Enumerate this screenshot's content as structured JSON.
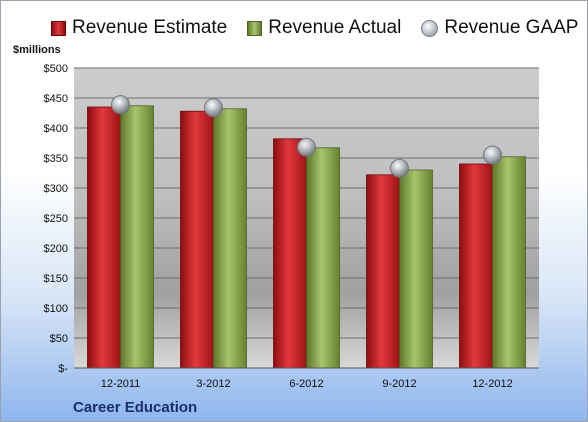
{
  "chart_data": {
    "type": "bar",
    "ylabel": "$millions",
    "company": "Career Education",
    "categories": [
      "12-2011",
      "3-2012",
      "6-2012",
      "9-2012",
      "12-2012"
    ],
    "ylim": [
      0,
      500
    ],
    "yticks": [
      0,
      50,
      100,
      150,
      200,
      250,
      300,
      350,
      400,
      450,
      500
    ],
    "ytick_labels": [
      "$-",
      "$50",
      "$100",
      "$150",
      "$200",
      "$250",
      "$300",
      "$350",
      "$400",
      "$450",
      "$500"
    ],
    "grid": true,
    "legend_position": "top",
    "series": [
      {
        "name": "Revenue Estimate",
        "kind": "bar",
        "color": "#c8262b",
        "values": [
          435,
          428,
          382,
          322,
          340
        ]
      },
      {
        "name": "Revenue Actual",
        "kind": "bar",
        "color": "#8fae52",
        "values": [
          437,
          432,
          367,
          330,
          352
        ]
      },
      {
        "name": "Revenue GAAP",
        "kind": "marker",
        "color": "#b9bec6",
        "values": [
          439,
          434,
          368,
          333,
          355
        ]
      }
    ]
  }
}
